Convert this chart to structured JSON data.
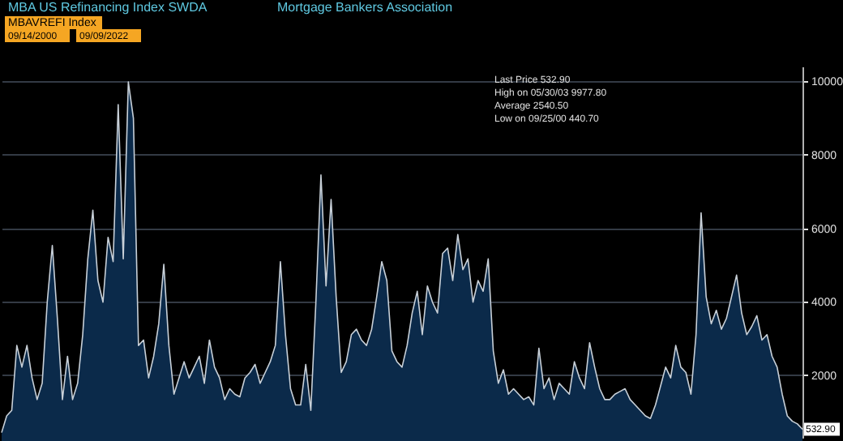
{
  "chart_data": {
    "type": "area",
    "title": "MBA US Refinancing Index SWDA",
    "subtitle": "Mortgage Bankers Association",
    "categories": [
      null,
      null,
      null,
      null,
      null,
      null,
      null,
      null,
      null,
      null,
      null,
      null,
      null,
      null,
      null,
      null,
      null,
      null,
      null,
      null,
      null,
      null,
      null,
      null,
      null,
      null,
      null,
      null,
      null,
      null,
      null,
      null,
      null,
      null,
      null,
      null,
      null,
      null,
      null,
      null,
      null,
      null,
      null,
      null,
      null,
      null,
      null,
      null,
      null,
      null,
      null,
      null,
      null,
      null,
      null,
      null,
      null,
      null,
      null,
      null,
      null,
      null,
      null,
      null,
      null,
      null,
      null,
      null,
      null,
      null,
      null,
      null,
      null,
      null,
      null,
      null,
      null,
      null,
      null,
      null,
      null,
      null,
      null,
      null,
      null,
      null,
      null,
      null,
      null,
      null,
      null,
      null,
      null,
      null,
      null,
      null,
      null,
      null,
      null,
      null,
      null,
      null,
      null,
      null,
      null,
      null,
      null,
      null,
      null,
      null,
      null,
      null,
      null,
      null,
      null,
      null,
      null,
      null,
      null,
      null,
      null,
      null,
      null,
      null,
      null,
      null,
      null,
      null,
      null,
      null,
      null,
      null,
      null,
      null,
      null,
      null,
      null,
      null,
      null,
      null,
      null,
      null,
      null,
      null,
      null,
      null,
      null,
      null,
      null,
      null,
      null,
      null,
      null,
      null,
      null,
      null,
      null,
      null,
      null
    ],
    "series": [
      {
        "color": "#c8d0d8",
        "values": [
          440.7,
          897,
          1045,
          2811,
          2222,
          2811,
          1928,
          1339,
          1781,
          3988,
          5533,
          3547,
          1339,
          2517,
          1339,
          1781,
          3105,
          5166,
          6490,
          4577,
          3988,
          5754,
          5092,
          9360,
          5166,
          9977.8,
          8992,
          2811,
          2958,
          1928,
          2517,
          3400,
          5018,
          2811,
          1486,
          1928,
          2369,
          1928,
          2222,
          2517,
          1781,
          2958,
          2222,
          1928,
          1339,
          1634,
          1486,
          1413,
          1928,
          2075,
          2296,
          1781,
          2075,
          2369,
          2811,
          5092,
          3105,
          1634,
          1192,
          1192,
          2296,
          1045,
          3988,
          7447,
          4430,
          6785,
          4135,
          2075,
          2369,
          3105,
          3252,
          2958,
          2811,
          3252,
          4135,
          5092,
          4577,
          2664,
          2369,
          2222,
          2811,
          3694,
          4283,
          3105,
          4430,
          3988,
          3694,
          5313,
          5459,
          4577,
          5828,
          4871,
          5166,
          3988,
          4577,
          4283,
          5166,
          2664,
          1781,
          2149,
          1486,
          1634,
          1486,
          1339,
          1413,
          1192,
          2737,
          1634,
          1928,
          1339,
          1781,
          1634,
          1486,
          2369,
          1928,
          1634,
          2885,
          2222,
          1634,
          1339,
          1339,
          1486,
          1560,
          1634,
          1339,
          1192,
          1045,
          897,
          824,
          1192,
          1707,
          2222,
          1928,
          2811,
          2222,
          2075,
          1486,
          3105,
          6417,
          4135,
          3400,
          3768,
          3252,
          3547,
          4135,
          4724,
          3694,
          3105,
          3326,
          3620,
          2958,
          3105,
          2517,
          2222,
          1486,
          897,
          750,
          677,
          532.9
        ]
      }
    ],
    "ylim": [
      300,
      10400
    ],
    "yticks": [
      2000,
      4000,
      6000,
      8000,
      10000
    ],
    "grid": "y",
    "legend": false,
    "tick_labels": "y",
    "annotations": [
      "MBAVREFI Index",
      "09/14/2000",
      "09/09/2022",
      "Last Price 532.90",
      "High on 05/30/03 9977.80",
      "Average 2540.50",
      "Low on 09/25/00 440.70",
      {
        "text": "532.90",
        "y": 532.9
      }
    ]
  }
}
